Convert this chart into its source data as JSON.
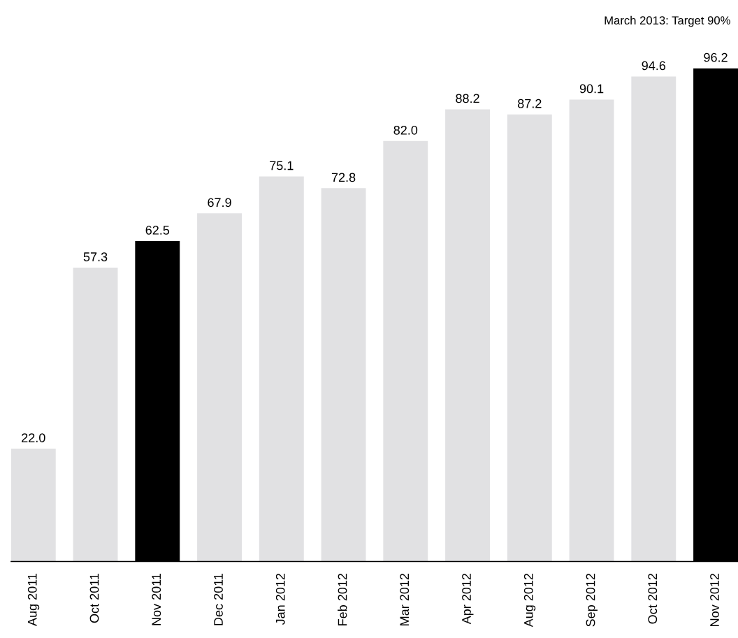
{
  "chart_data": {
    "type": "bar",
    "categories": [
      "Aug 2011",
      "Oct 2011",
      "Nov 2011",
      "Dec 2011",
      "Jan 2012",
      "Feb 2012",
      "Mar 2012",
      "Apr 2012",
      "Aug 2012",
      "Sep 2012",
      "Oct 2012",
      "Nov 2012"
    ],
    "values": [
      22.0,
      57.3,
      62.5,
      67.9,
      75.1,
      72.8,
      82.0,
      88.2,
      87.2,
      90.1,
      94.6,
      96.2
    ],
    "value_labels": [
      "22.0",
      "57.3",
      "62.5",
      "67.9",
      "75.1",
      "72.8",
      "82.0",
      "88.2",
      "87.2",
      "90.1",
      "94.6",
      "96.2"
    ],
    "colors": [
      "#e1e1e3",
      "#e1e1e3",
      "#000000",
      "#e1e1e3",
      "#e1e1e3",
      "#e1e1e3",
      "#e1e1e3",
      "#e1e1e3",
      "#e1e1e3",
      "#e1e1e3",
      "#e1e1e3",
      "#000000"
    ],
    "grid": false,
    "legend": false,
    "tick_labels": "x",
    "annotations": [
      "March 2013: Target 90%"
    ]
  }
}
